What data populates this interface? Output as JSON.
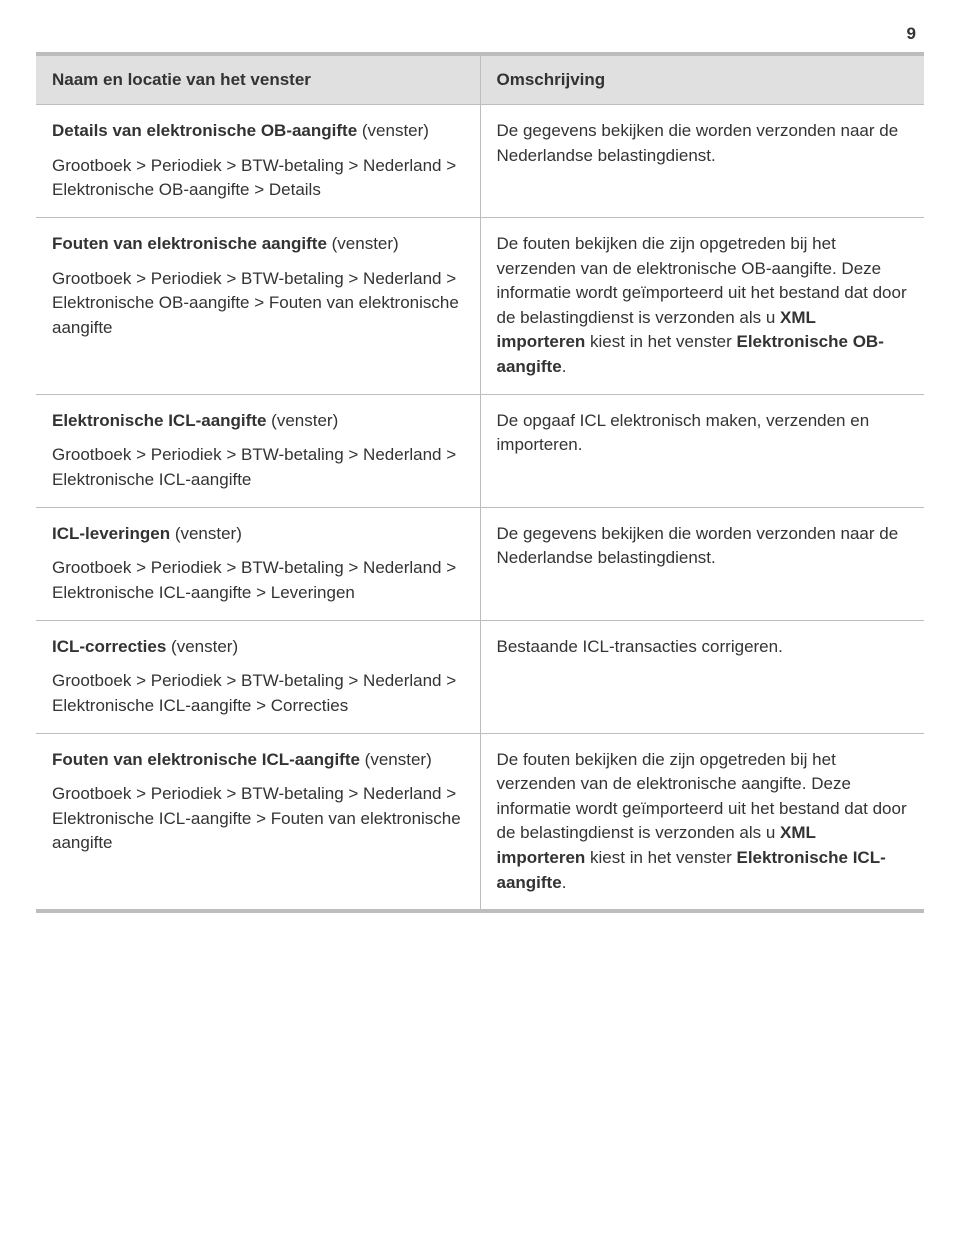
{
  "page_number": "9",
  "headers": {
    "left": "Naam en locatie van het venster",
    "right": "Omschrijving"
  },
  "rows": [
    {
      "title": "Details van elektronische OB-aangifte ",
      "title_suffix": "(venster)",
      "sub": "Grootboek > Periodiek > BTW-betaling > Nederland > Elektronische OB-aangifte > Details",
      "desc_html": "De gegevens bekijken die worden verzonden naar de Nederlandse belastingdienst."
    },
    {
      "title": "Fouten van elektronische aangifte ",
      "title_suffix": "(venster)",
      "sub": "Grootboek > Periodiek > BTW-betaling > Nederland > Elektronische OB-aangifte > Fouten van elektronische aangifte",
      "desc_html": "De fouten bekijken die zijn opgetreden bij het verzenden van de elektronische OB-aangifte. Deze informatie wordt geïmporteerd uit het bestand dat door de belastingdienst is verzonden als u <span class=\"kw\">XML importeren</span> kiest in het venster <span class=\"kw\">Elektronische OB-aangifte</span>."
    },
    {
      "title": "Elektronische ICL-aangifte ",
      "title_suffix": "(venster)",
      "sub": "Grootboek > Periodiek > BTW-betaling > Nederland > Elektronische ICL-aangifte",
      "desc_html": "De opgaaf ICL elektronisch maken, verzenden en importeren."
    },
    {
      "title": "ICL-leveringen ",
      "title_suffix": "(venster)",
      "sub": "Grootboek > Periodiek > BTW-betaling > Nederland > Elektronische ICL-aangifte > Leveringen",
      "desc_html": "De gegevens bekijken die worden verzonden naar de Nederlandse belastingdienst."
    },
    {
      "title": "ICL-correcties ",
      "title_suffix": "(venster)",
      "sub": "Grootboek > Periodiek > BTW-betaling > Nederland > Elektronische ICL-aangifte > Correcties",
      "desc_html": "Bestaande ICL-transacties corrigeren."
    },
    {
      "title": "Fouten van elektronische ICL-aangifte ",
      "title_suffix": "(venster)",
      "sub": "Grootboek > Periodiek > BTW-betaling > Nederland > Elektronische ICL-aangifte > Fouten van elektronische aangifte",
      "desc_html": "De fouten bekijken die zijn opgetreden bij het verzenden van de elektronische aangifte. Deze informatie wordt geïmporteerd uit het bestand dat door de belastingdienst is verzonden als u <span class=\"kw\">XML importeren</span> kiest in het venster <span class=\"kw\">Elektronische ICL-aangifte</span>."
    }
  ],
  "style": {
    "background_color": "#ffffff",
    "text_color": "#333333",
    "header_bg": "#e0e0e0",
    "border_color": "#bdbdbd",
    "outer_border_width": 4,
    "inner_border_width": 1,
    "font_size_pt": 13,
    "font_family": "Arial"
  }
}
